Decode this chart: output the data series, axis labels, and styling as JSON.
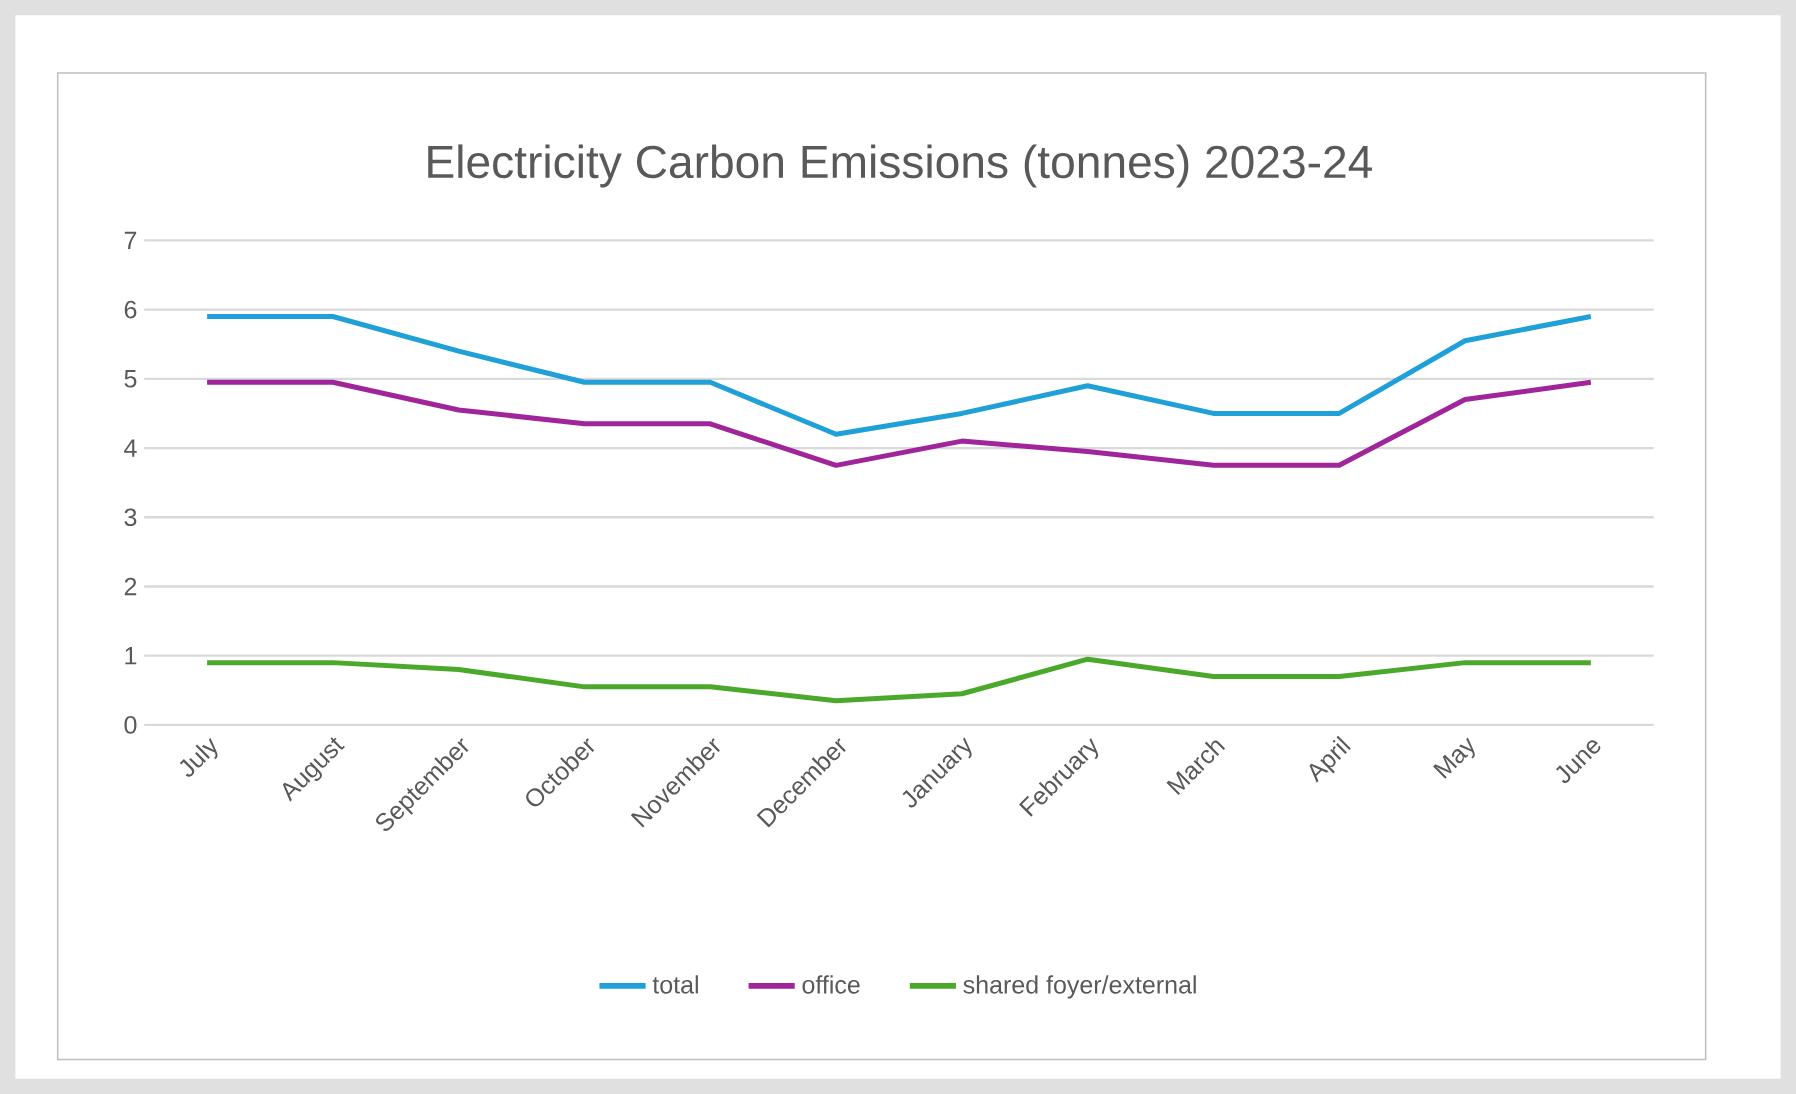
{
  "chart_data": {
    "type": "line",
    "title": "Electricity Carbon Emissions (tonnes) 2023-24",
    "categories": [
      "July",
      "August",
      "September",
      "October",
      "November",
      "December",
      "January",
      "February",
      "March",
      "April",
      "May",
      "June"
    ],
    "series": [
      {
        "name": "total",
        "color": "#1fa0d8",
        "values": [
          5.9,
          5.9,
          5.4,
          4.95,
          4.95,
          4.2,
          4.5,
          4.9,
          4.5,
          4.5,
          5.55,
          5.9
        ]
      },
      {
        "name": "office",
        "color": "#a0259b",
        "values": [
          4.95,
          4.95,
          4.55,
          4.35,
          4.35,
          3.75,
          4.1,
          3.95,
          3.75,
          3.75,
          4.7,
          4.95
        ]
      },
      {
        "name": "shared foyer/external",
        "color": "#4aa82a",
        "values": [
          0.9,
          0.9,
          0.8,
          0.55,
          0.55,
          0.35,
          0.45,
          0.95,
          0.7,
          0.7,
          0.9,
          0.9
        ]
      }
    ],
    "ylim": [
      0,
      7
    ],
    "yticks": [
      0,
      1,
      2,
      3,
      4,
      5,
      6,
      7
    ],
    "grid": "y",
    "legend": "bottom",
    "marker": "none",
    "line_style": "solid"
  }
}
